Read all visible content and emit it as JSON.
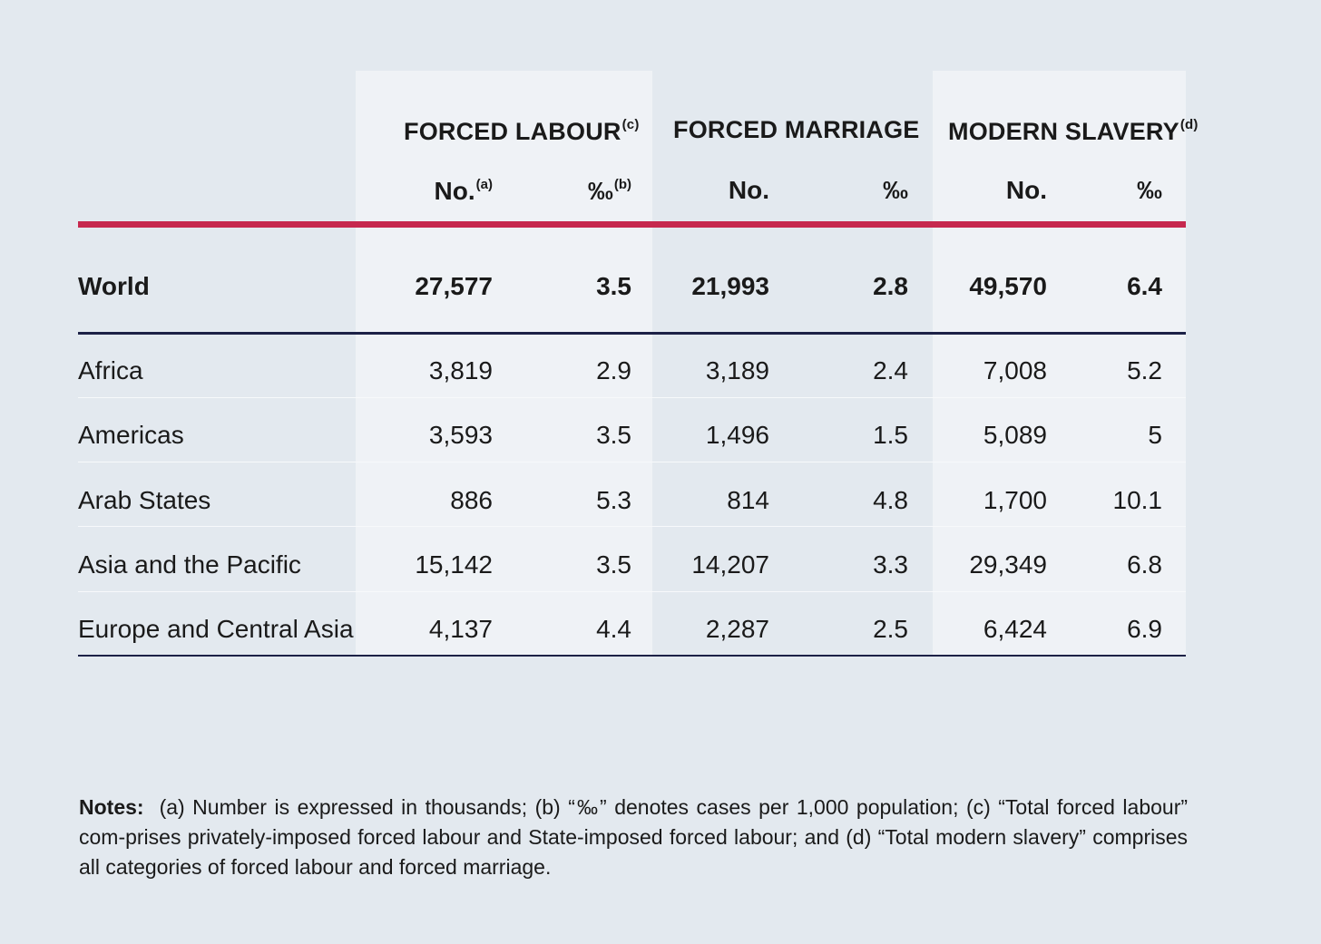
{
  "chart_data": {
    "type": "table",
    "groups": [
      {
        "label": "FORCED LABOUR",
        "sup": "(c)"
      },
      {
        "label": "FORCED MARRIAGE",
        "sup": ""
      },
      {
        "label": "MODERN SLAVERY",
        "sup": "(d)"
      }
    ],
    "subheaders": [
      {
        "label": "No.",
        "sup": "(a)"
      },
      {
        "label": "‰",
        "sup": "(b)"
      },
      {
        "label": "No.",
        "sup": ""
      },
      {
        "label": "‰",
        "sup": ""
      },
      {
        "label": "No.",
        "sup": ""
      },
      {
        "label": "‰",
        "sup": ""
      }
    ],
    "world": {
      "label": "World",
      "values": [
        "27,577",
        "3.5",
        "21,993",
        "2.8",
        "49,570",
        "6.4"
      ]
    },
    "rows": [
      {
        "label": "Africa",
        "values": [
          "3,819",
          "2.9",
          "3,189",
          "2.4",
          "7,008",
          "5.2"
        ]
      },
      {
        "label": "Americas",
        "values": [
          "3,593",
          "3.5",
          "1,496",
          "1.5",
          "5,089",
          "5"
        ]
      },
      {
        "label": "Arab States",
        "values": [
          "886",
          "5.3",
          "814",
          "4.8",
          "1,700",
          "10.1"
        ]
      },
      {
        "label": "Asia and the Pacific",
        "values": [
          "15,142",
          "3.5",
          "14,207",
          "3.3",
          "29,349",
          "6.8"
        ]
      },
      {
        "label": "Europe and Central Asia",
        "values": [
          "4,137",
          "4.4",
          "2,287",
          "2.5",
          "6,424",
          "6.9"
        ]
      }
    ],
    "notes": {
      "label": "Notes:",
      "text": "(a) Number is expressed in thousands; (b) “‰” denotes cases per 1,000 population; (c) “Total forced labour” com-prises privately-imposed forced labour and State-imposed forced labour; and (d) “Total modern slavery” comprises all categories of forced labour and forced marriage."
    }
  },
  "colors": {
    "background": "#e3e9ef",
    "band": "#eff2f6",
    "header_rule": "#c6284e",
    "world_rule": "#1c2146"
  }
}
